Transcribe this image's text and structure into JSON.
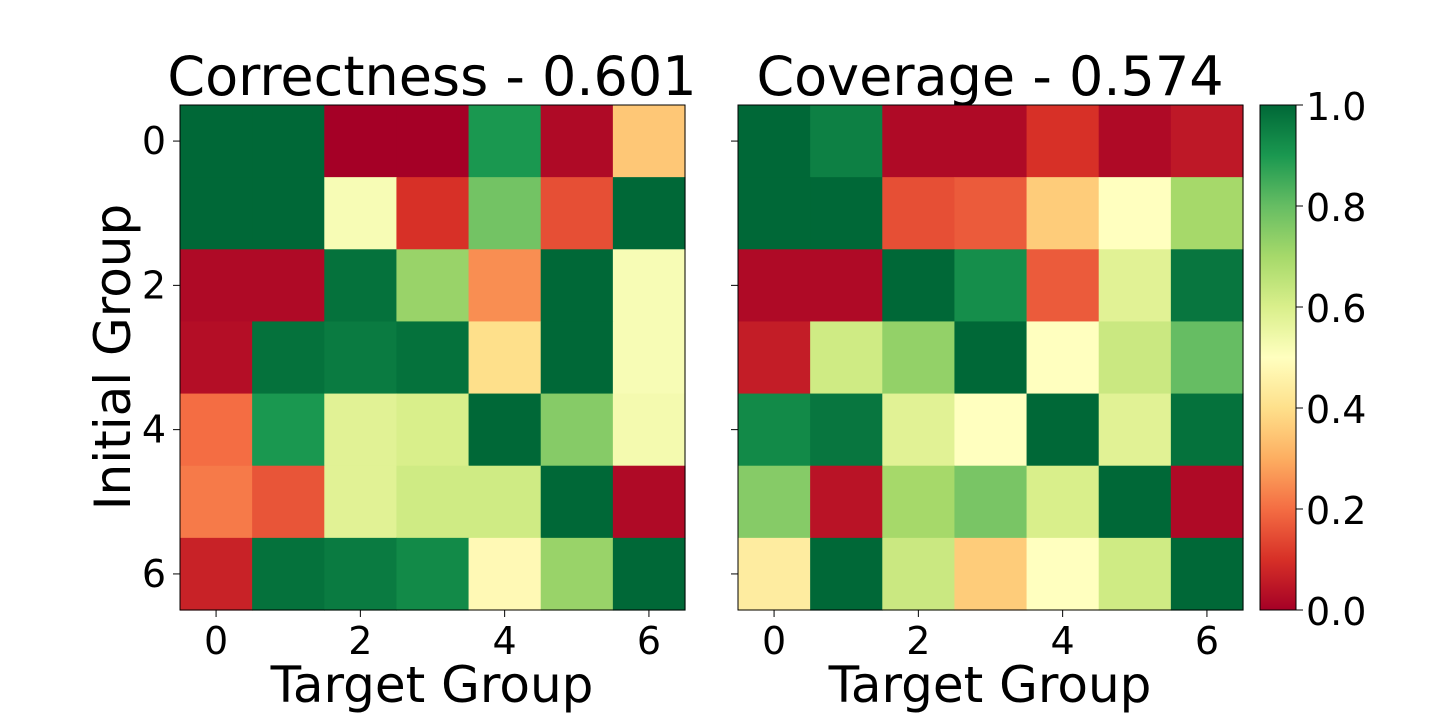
{
  "chart_data": [
    {
      "type": "heatmap",
      "title": "Correctness - 0.601",
      "xlabel": "Target Group",
      "ylabel": "Initial Group",
      "x_ticks": [
        "0",
        "2",
        "4",
        "6"
      ],
      "y_ticks": [
        "0",
        "2",
        "4",
        "6"
      ],
      "value_range": [
        0,
        1
      ],
      "colormap": "RdYlGn",
      "values": [
        [
          1.0,
          1.0,
          0.0,
          0.0,
          0.9,
          0.02,
          0.35
        ],
        [
          1.0,
          1.0,
          0.52,
          0.1,
          0.78,
          0.15,
          1.0
        ],
        [
          0.02,
          0.02,
          0.98,
          0.72,
          0.25,
          1.0,
          0.52
        ],
        [
          0.03,
          0.98,
          0.96,
          0.98,
          0.4,
          1.0,
          0.52
        ],
        [
          0.2,
          0.9,
          0.58,
          0.6,
          1.0,
          0.75,
          0.53
        ],
        [
          0.22,
          0.16,
          0.58,
          0.62,
          0.62,
          1.0,
          0.02
        ],
        [
          0.07,
          0.98,
          0.96,
          0.93,
          0.48,
          0.72,
          1.0
        ]
      ]
    },
    {
      "type": "heatmap",
      "title": "Coverage - 0.574",
      "xlabel": "Target Group",
      "ylabel": "",
      "x_ticks": [
        "0",
        "2",
        "4",
        "6"
      ],
      "y_ticks": [
        "0",
        "2",
        "4",
        "6"
      ],
      "value_range": [
        0,
        1
      ],
      "colormap": "RdYlGn",
      "values": [
        [
          1.0,
          0.95,
          0.02,
          0.02,
          0.1,
          0.02,
          0.05
        ],
        [
          1.0,
          1.0,
          0.15,
          0.17,
          0.36,
          0.5,
          0.7
        ],
        [
          0.02,
          0.02,
          1.0,
          0.92,
          0.17,
          0.58,
          0.97
        ],
        [
          0.06,
          0.62,
          0.73,
          1.0,
          0.5,
          0.63,
          0.8
        ],
        [
          0.93,
          0.97,
          0.58,
          0.5,
          1.0,
          0.58,
          0.98
        ],
        [
          0.75,
          0.04,
          0.7,
          0.77,
          0.6,
          1.0,
          0.02
        ],
        [
          0.44,
          1.0,
          0.63,
          0.36,
          0.5,
          0.62,
          1.0
        ]
      ]
    }
  ],
  "colorbar": {
    "ticks": [
      "0.0",
      "0.2",
      "0.4",
      "0.6",
      "0.8",
      "1.0"
    ],
    "tick_values": [
      0,
      0.2,
      0.4,
      0.6,
      0.8,
      1.0
    ],
    "range": [
      0,
      1
    ]
  }
}
